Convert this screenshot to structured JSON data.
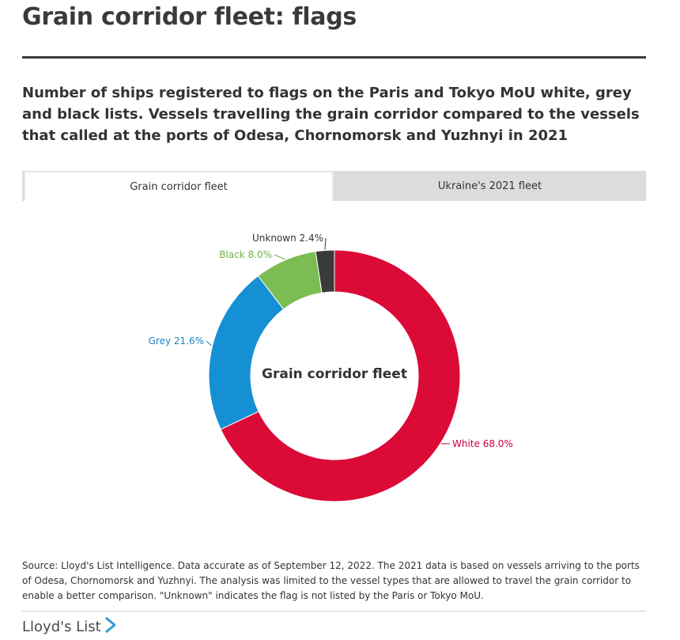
{
  "header": {
    "title": "Grain corridor fleet: flags",
    "subtitle": "Number of ships registered to flags on the Paris and Tokyo MoU white, grey and black lists. Vessels travelling the grain corridor compared to the vessels that called at the ports of Odesa, Chornomorsk and Yuzhnyi in 2021"
  },
  "tabs": [
    {
      "label": "Grain corridor fleet",
      "active": true
    },
    {
      "label": "Ukraine's 2021 fleet",
      "active": false
    }
  ],
  "chart_data": {
    "type": "pie",
    "variant": "donut",
    "title": "Grain corridor fleet",
    "slices": [
      {
        "label": "White",
        "value": 68.0,
        "display": "White 68.0%",
        "color": "#dc0a37"
      },
      {
        "label": "Grey",
        "value": 21.6,
        "display": "Grey 21.6%",
        "color": "#1590d4"
      },
      {
        "label": "Black",
        "value": 8.0,
        "display": "Black 8.0%",
        "color": "#7bbd52"
      },
      {
        "label": "Unknown",
        "value": 2.4,
        "display": "Unknown 2.4%",
        "color": "#3a3a3a"
      }
    ],
    "label_colors": {
      "White": "#c8003a",
      "Grey": "#1f83c2",
      "Black": "#6fb244",
      "Unknown": "#333333"
    }
  },
  "footer": {
    "source": "Source: Lloyd's List Intelligence. Data accurate as of September 12, 2022. The 2021 data is based on vessels arriving to the ports of Odesa, Chornomorsk and Yuzhnyi. The analysis was limited to the vessel types that are allowed to travel the grain corridor to enable a better comparison. \"Unknown\" indicates the flag is not listed by the Paris or Tokyo MoU.",
    "brand": "Lloyd's List",
    "brand_icon": "play-triangle-icon",
    "brand_color": "#2e9bd6"
  }
}
